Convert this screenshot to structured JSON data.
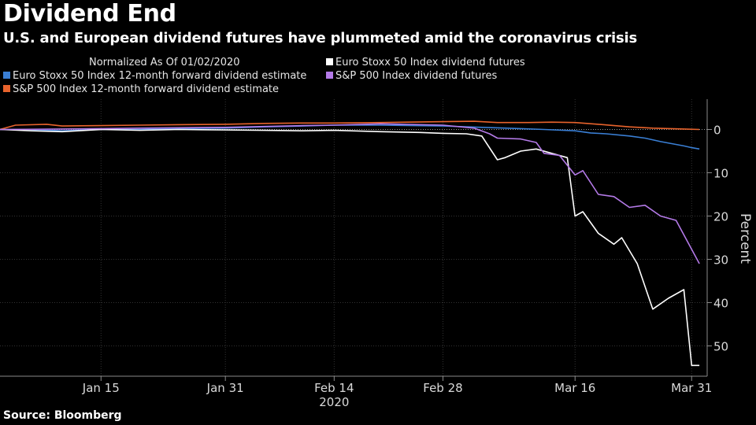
{
  "title": "Dividend End",
  "subtitle": "U.S. and European dividend futures have plummeted amid the coronavirus crisis",
  "source": "Source: Bloomberg",
  "chart_data": {
    "type": "line",
    "legend_caption": "Normalized As Of 01/02/2020",
    "legend_placement": "top-left",
    "ylabel": "Percent",
    "year_label": "2020",
    "ylim": [
      -57,
      7
    ],
    "yticks": [
      0,
      -10,
      -20,
      -30,
      -40,
      -50
    ],
    "ytick_labels": [
      "0",
      "10",
      "20",
      "30",
      "40",
      "50"
    ],
    "xlim": [
      "2020-01-02",
      "2020-04-02"
    ],
    "xticks": [
      {
        "date": "2020-01-15",
        "label": "Jan 15"
      },
      {
        "date": "2020-01-31",
        "label": "Jan 31"
      },
      {
        "date": "2020-02-14",
        "label": "Feb 14"
      },
      {
        "date": "2020-02-28",
        "label": "Feb 28"
      },
      {
        "date": "2020-03-16",
        "label": "Mar 16"
      },
      {
        "date": "2020-03-31",
        "label": "Mar 31"
      }
    ],
    "grid": true,
    "series": [
      {
        "name": "Euro Stoxx 50 Index 12-month forward dividend estimate",
        "color": "#3a7fd5",
        "points": [
          [
            "2020-01-02",
            0
          ],
          [
            "2020-01-06",
            0
          ],
          [
            "2020-01-10",
            -0.3
          ],
          [
            "2020-01-15",
            0
          ],
          [
            "2020-01-20",
            0
          ],
          [
            "2020-01-25",
            0.2
          ],
          [
            "2020-01-31",
            0.3
          ],
          [
            "2020-02-05",
            0.6
          ],
          [
            "2020-02-10",
            0.8
          ],
          [
            "2020-02-14",
            1.0
          ],
          [
            "2020-02-20",
            1.0
          ],
          [
            "2020-02-28",
            0.8
          ],
          [
            "2020-03-04",
            0.5
          ],
          [
            "2020-03-09",
            0.2
          ],
          [
            "2020-03-12",
            0
          ],
          [
            "2020-03-16",
            -0.3
          ],
          [
            "2020-03-18",
            -0.8
          ],
          [
            "2020-03-20",
            -1.0
          ],
          [
            "2020-03-23",
            -1.5
          ],
          [
            "2020-03-25",
            -2.0
          ],
          [
            "2020-03-27",
            -2.8
          ],
          [
            "2020-03-30",
            -3.8
          ],
          [
            "2020-03-31",
            -4.2
          ],
          [
            "2020-04-01",
            -4.5
          ]
        ]
      },
      {
        "name": "S&P 500 Index 12-month forward dividend estimate",
        "color": "#e8632c",
        "points": [
          [
            "2020-01-02",
            0
          ],
          [
            "2020-01-04",
            1.0
          ],
          [
            "2020-01-08",
            1.2
          ],
          [
            "2020-01-10",
            0.8
          ],
          [
            "2020-01-15",
            0.9
          ],
          [
            "2020-01-20",
            1.0
          ],
          [
            "2020-01-25",
            1.1
          ],
          [
            "2020-01-31",
            1.2
          ],
          [
            "2020-02-05",
            1.4
          ],
          [
            "2020-02-10",
            1.5
          ],
          [
            "2020-02-14",
            1.5
          ],
          [
            "2020-02-20",
            1.6
          ],
          [
            "2020-02-28",
            1.8
          ],
          [
            "2020-03-03",
            1.9
          ],
          [
            "2020-03-06",
            1.6
          ],
          [
            "2020-03-10",
            1.6
          ],
          [
            "2020-03-13",
            1.7
          ],
          [
            "2020-03-16",
            1.6
          ],
          [
            "2020-03-19",
            1.2
          ],
          [
            "2020-03-23",
            0.6
          ],
          [
            "2020-03-26",
            0.3
          ],
          [
            "2020-03-30",
            0.1
          ],
          [
            "2020-04-01",
            0
          ]
        ]
      },
      {
        "name": "Euro Stoxx 50 Index dividend futures",
        "color": "#ffffff",
        "points": [
          [
            "2020-01-02",
            0
          ],
          [
            "2020-01-06",
            -0.3
          ],
          [
            "2020-01-10",
            -0.5
          ],
          [
            "2020-01-15",
            0
          ],
          [
            "2020-01-20",
            -0.2
          ],
          [
            "2020-01-25",
            0
          ],
          [
            "2020-01-31",
            -0.1
          ],
          [
            "2020-02-05",
            -0.2
          ],
          [
            "2020-02-10",
            -0.3
          ],
          [
            "2020-02-14",
            -0.2
          ],
          [
            "2020-02-20",
            -0.5
          ],
          [
            "2020-02-25",
            -0.7
          ],
          [
            "2020-02-28",
            -0.9
          ],
          [
            "2020-03-02",
            -1.0
          ],
          [
            "2020-03-04",
            -1.5
          ],
          [
            "2020-03-06",
            -7.0
          ],
          [
            "2020-03-07",
            -6.5
          ],
          [
            "2020-03-09",
            -5.0
          ],
          [
            "2020-03-11",
            -4.5
          ],
          [
            "2020-03-13",
            -5.5
          ],
          [
            "2020-03-15",
            -6.5
          ],
          [
            "2020-03-16",
            -20.0
          ],
          [
            "2020-03-17",
            -19.0
          ],
          [
            "2020-03-19",
            -24.0
          ],
          [
            "2020-03-21",
            -26.5
          ],
          [
            "2020-03-22",
            -25.0
          ],
          [
            "2020-03-24",
            -31.0
          ],
          [
            "2020-03-26",
            -41.5
          ],
          [
            "2020-03-28",
            -39.0
          ],
          [
            "2020-03-30",
            -37.0
          ],
          [
            "2020-03-31",
            -54.5
          ],
          [
            "2020-04-01",
            -54.5
          ]
        ]
      },
      {
        "name": "S&P 500 Index dividend futures",
        "color": "#b47ae8",
        "points": [
          [
            "2020-01-02",
            0
          ],
          [
            "2020-01-10",
            0.1
          ],
          [
            "2020-01-15",
            0.2
          ],
          [
            "2020-01-20",
            0.3
          ],
          [
            "2020-01-31",
            0.5
          ],
          [
            "2020-02-05",
            0.7
          ],
          [
            "2020-02-10",
            0.9
          ],
          [
            "2020-02-14",
            1.0
          ],
          [
            "2020-02-20",
            1.3
          ],
          [
            "2020-02-28",
            1.0
          ],
          [
            "2020-03-03",
            0.3
          ],
          [
            "2020-03-05",
            -1.0
          ],
          [
            "2020-03-06",
            -2.0
          ],
          [
            "2020-03-09",
            -2.2
          ],
          [
            "2020-03-11",
            -3.0
          ],
          [
            "2020-03-12",
            -5.5
          ],
          [
            "2020-03-14",
            -6.0
          ],
          [
            "2020-03-16",
            -10.5
          ],
          [
            "2020-03-17",
            -9.5
          ],
          [
            "2020-03-19",
            -15.0
          ],
          [
            "2020-03-21",
            -15.5
          ],
          [
            "2020-03-23",
            -18.0
          ],
          [
            "2020-03-25",
            -17.5
          ],
          [
            "2020-03-27",
            -20.0
          ],
          [
            "2020-03-29",
            -21.0
          ],
          [
            "2020-04-01",
            -31.0
          ]
        ]
      }
    ]
  }
}
